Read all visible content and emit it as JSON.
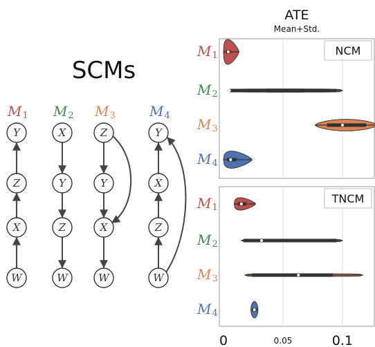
{
  "diagram": {
    "title": "SCMs",
    "models": [
      {
        "name": "M",
        "sub": "1",
        "color": "#c0504d",
        "nodes": [
          "Y",
          "Z",
          "X",
          "W"
        ]
      },
      {
        "name": "M",
        "sub": "2",
        "color": "#3f8a4c",
        "nodes": [
          "X",
          "Y",
          "Z",
          "W"
        ]
      },
      {
        "name": "M",
        "sub": "3",
        "color": "#dd8452",
        "nodes": [
          "Z",
          "Y",
          "X",
          "W"
        ]
      },
      {
        "name": "M",
        "sub": "4",
        "color": "#4c72b0",
        "nodes": [
          "Y",
          "X",
          "Z",
          "W"
        ]
      }
    ]
  },
  "chart_data": {
    "type": "violin",
    "title": "ATE",
    "subtitle": "Mean+Std.",
    "xlim": [
      0,
      0.1
    ],
    "x_ticks": [
      {
        "value": 0,
        "label": "0",
        "big": true
      },
      {
        "value": 0.05,
        "label": "0.05",
        "big": false
      },
      {
        "value": 0.1,
        "label": "0.1",
        "big": true
      }
    ],
    "grid": true,
    "panels": [
      {
        "name": "NCM",
        "rows": [
          {
            "model": "M",
            "sub": "1",
            "color": "#c0504d",
            "min": 0.0,
            "max": 0.013,
            "q1": 0.002,
            "q3": 0.006,
            "median": 0.004,
            "width": 0.9,
            "shape": "skew"
          },
          {
            "model": "M",
            "sub": "2",
            "color": "#3f8a4c",
            "min": 0.004,
            "max": 0.1,
            "q1": 0.005,
            "q3": 0.095,
            "median": 0.005,
            "width": 0.12,
            "shape": "flat"
          },
          {
            "model": "M",
            "sub": "3",
            "color": "#dd8452",
            "min": 0.077,
            "max": 0.129,
            "q1": 0.087,
            "q3": 0.12,
            "median": 0.1,
            "width": 0.42,
            "shape": "symm"
          },
          {
            "model": "M",
            "sub": "4",
            "color": "#4c72b0",
            "min": 0.0,
            "max": 0.024,
            "q1": 0.003,
            "q3": 0.011,
            "median": 0.006,
            "width": 0.62,
            "shape": "skew"
          }
        ]
      },
      {
        "name": "TNCM",
        "rows": [
          {
            "model": "M",
            "sub": "1",
            "color": "#c0504d",
            "min": 0.009,
            "max": 0.027,
            "q1": 0.012,
            "q3": 0.019,
            "median": 0.015,
            "width": 0.45,
            "shape": "skew"
          },
          {
            "model": "M",
            "sub": "2",
            "color": "#3f8a4c",
            "min": 0.015,
            "max": 0.1,
            "q1": 0.017,
            "q3": 0.095,
            "median": 0.032,
            "width": 0.1,
            "shape": "flat"
          },
          {
            "model": "M",
            "sub": "3",
            "color": "#dd8452",
            "min": 0.018,
            "max": 0.117,
            "q1": 0.024,
            "q3": 0.092,
            "median": 0.063,
            "width": 0.1,
            "shape": "flat"
          },
          {
            "model": "M",
            "sub": "4",
            "color": "#4c72b0",
            "min": 0.023,
            "max": 0.029,
            "q1": 0.024,
            "q3": 0.028,
            "median": 0.026,
            "width": 0.6,
            "shape": "tall"
          }
        ]
      }
    ]
  }
}
